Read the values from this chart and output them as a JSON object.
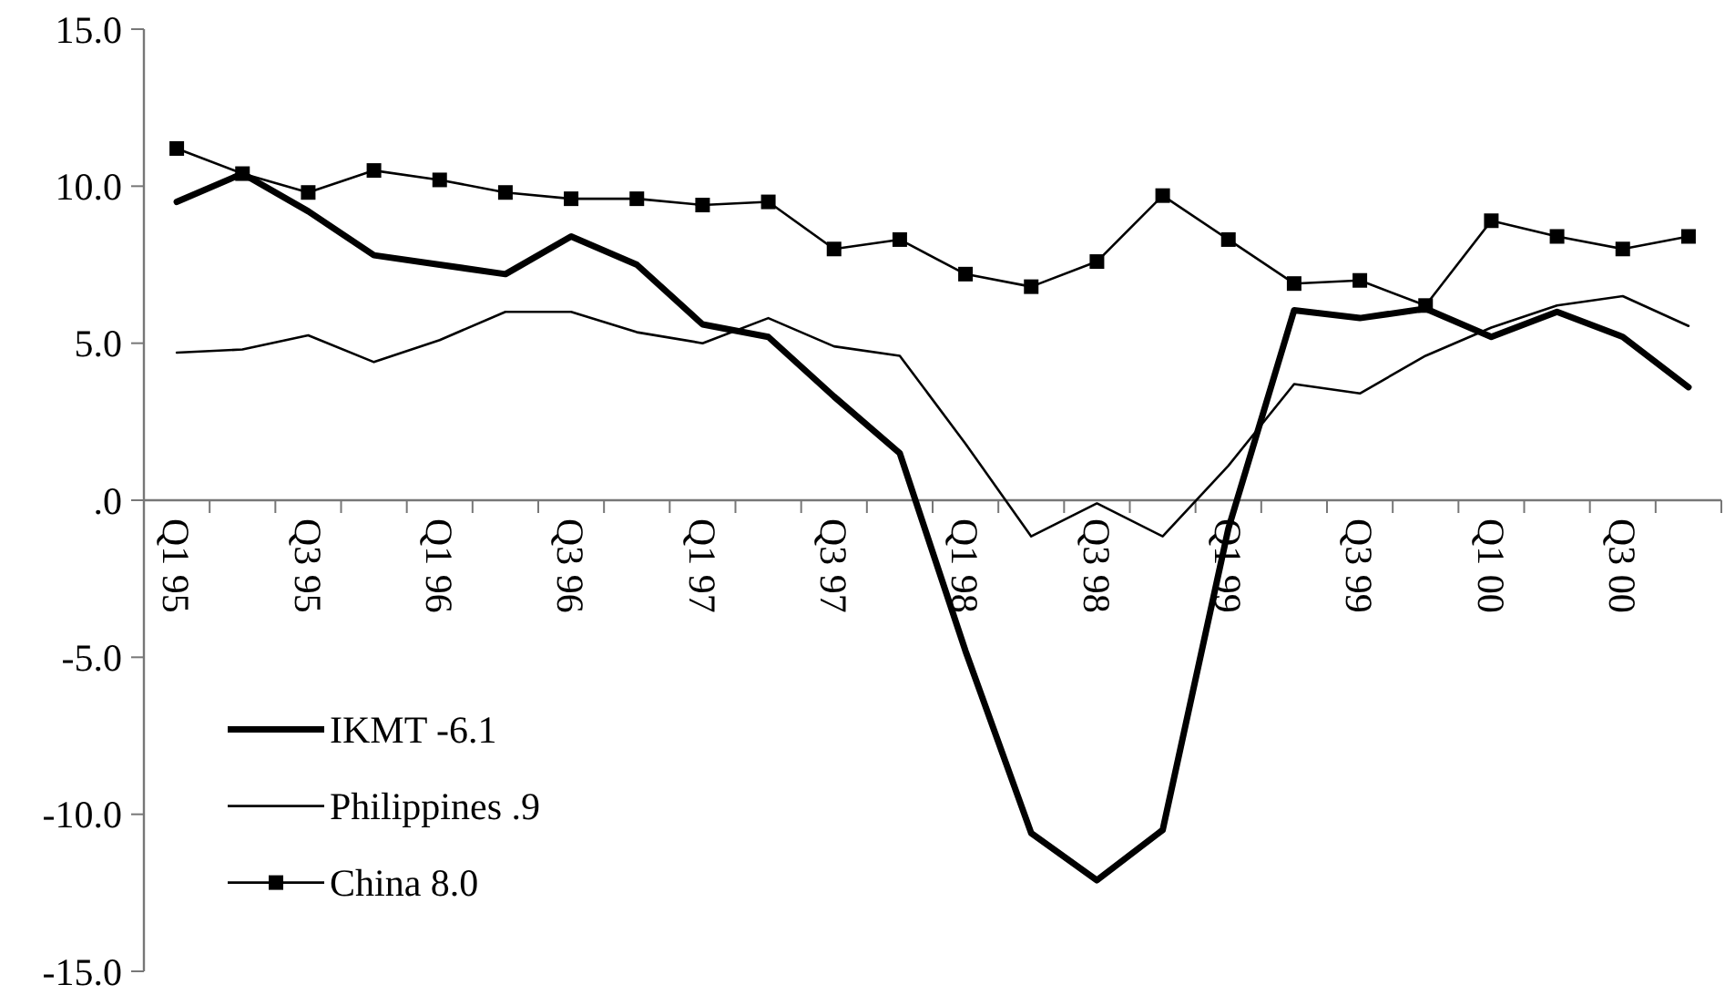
{
  "chart_data": {
    "type": "line",
    "categories": [
      "Q1 95",
      null,
      "Q3 95",
      null,
      "Q1 96",
      null,
      "Q3 96",
      null,
      "Q1 97",
      null,
      "Q3 97",
      null,
      "Q1 98",
      null,
      "Q3 98",
      null,
      "Q1 99",
      null,
      "Q3 99",
      null,
      "Q1 00",
      null,
      "Q3 00",
      null
    ],
    "series": [
      {
        "name": "IKMT -6.1",
        "color": "#000000",
        "marker": "none",
        "values": [
          9.5,
          10.4,
          9.2,
          7.8,
          7.5,
          7.2,
          8.4,
          7.5,
          5.6,
          5.2,
          3.3,
          1.5,
          -4.8,
          -10.6,
          -12.1,
          -10.5,
          -0.9,
          6.05,
          5.8,
          6.1,
          5.2,
          6.0,
          5.2,
          3.6
        ]
      },
      {
        "name": "Philippines .9",
        "color": "#000000",
        "marker": "none",
        "values": [
          4.7,
          4.8,
          5.25,
          4.4,
          5.1,
          6.0,
          6.0,
          5.35,
          5.0,
          5.8,
          4.9,
          4.6,
          1.8,
          -1.15,
          -0.1,
          -1.15,
          1.1,
          3.7,
          3.4,
          4.6,
          5.5,
          6.2,
          6.5,
          5.55
        ]
      },
      {
        "name": "China 8.0",
        "color": "#000000",
        "marker": "square",
        "values": [
          11.2,
          10.4,
          9.8,
          10.5,
          10.2,
          9.8,
          9.6,
          9.6,
          9.4,
          9.5,
          8.0,
          8.3,
          7.2,
          6.8,
          7.6,
          9.7,
          8.3,
          6.9,
          7.0,
          6.2,
          8.9,
          8.4,
          8.0,
          8.4
        ]
      }
    ],
    "ylim": [
      -15,
      15
    ],
    "yticks": [
      {
        "value": -15,
        "label": "-15.0"
      },
      {
        "value": -10,
        "label": "-10.0"
      },
      {
        "value": -5,
        "label": "-5.0"
      },
      {
        "value": 0,
        "label": ".0"
      },
      {
        "value": 5,
        "label": "5.0"
      },
      {
        "value": 10,
        "label": "10.0"
      },
      {
        "value": 15,
        "label": "15.0"
      }
    ],
    "grid": false,
    "legend": "bottom left"
  }
}
